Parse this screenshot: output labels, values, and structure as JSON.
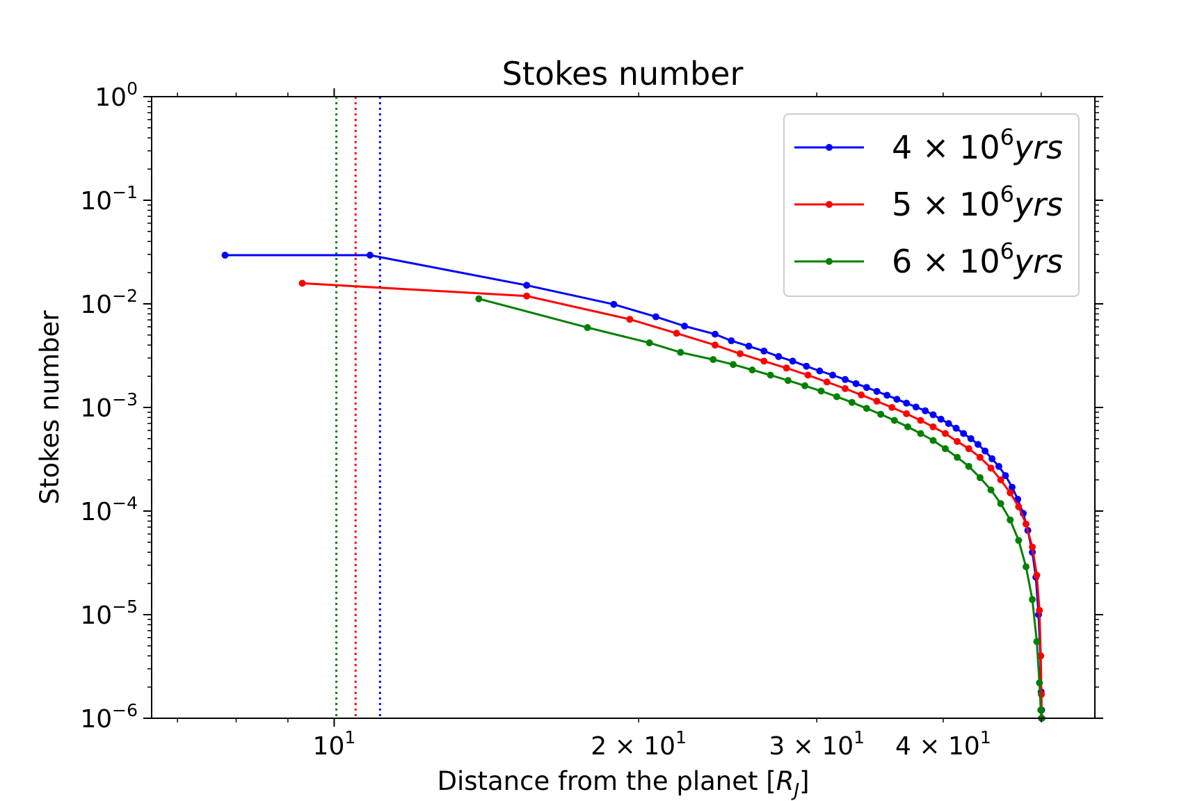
{
  "chart_data": {
    "type": "line",
    "title": "Stokes number",
    "xlabel": "Distance from the planet [R_J]",
    "ylabel": "Stokes number",
    "xscale": "log",
    "yscale": "log",
    "xlim": [
      6.6,
      56.5
    ],
    "ylim": [
      1e-06,
      1
    ],
    "x_tick_labels": [
      {
        "value": 10,
        "mantissa": "",
        "exponent": "1"
      },
      {
        "value": 20,
        "mantissa": "2",
        "exponent": "1"
      },
      {
        "value": 30,
        "mantissa": "3",
        "exponent": "1"
      },
      {
        "value": 40,
        "mantissa": "4",
        "exponent": "1"
      }
    ],
    "y_tick_labels": [
      {
        "value": 1,
        "exponent": "0"
      },
      {
        "value": 0.1,
        "exponent": "−1"
      },
      {
        "value": 0.01,
        "exponent": "−2"
      },
      {
        "value": 0.001,
        "exponent": "−3"
      },
      {
        "value": 0.0001,
        "exponent": "−4"
      },
      {
        "value": 1e-05,
        "exponent": "−5"
      },
      {
        "value": 1e-06,
        "exponent": "−6"
      }
    ],
    "legend_position": "top-right",
    "grid": false,
    "series": [
      {
        "name": "4 × 10^6 yrs",
        "mantissa": "4",
        "exponent": "6",
        "unit": "yrs",
        "color": "#0000ff",
        "vline_x": 11.1,
        "x": [
          7.8,
          10.85,
          15.5,
          18.9,
          20.8,
          22.2,
          23.8,
          24.7,
          25.7,
          26.6,
          27.5,
          28.4,
          29.3,
          30.2,
          31.1,
          32.0,
          32.8,
          33.6,
          34.4,
          35.2,
          36.0,
          36.8,
          37.6,
          38.4,
          39.1,
          39.8,
          40.5,
          41.2,
          41.9,
          42.6,
          43.3,
          44.0,
          44.7,
          45.4,
          46.1,
          46.8,
          47.4,
          48.0,
          48.5,
          49.0,
          49.4,
          49.7,
          49.9,
          50.0,
          50.05,
          50.08
        ],
        "y": [
          0.0295,
          0.0295,
          0.0151,
          0.0099,
          0.0075,
          0.0061,
          0.0051,
          0.0044,
          0.0039,
          0.0035,
          0.0031,
          0.0028,
          0.0025,
          0.00225,
          0.00205,
          0.00186,
          0.0017,
          0.00156,
          0.00143,
          0.00131,
          0.0012,
          0.0011,
          0.00101,
          0.00093,
          0.00085,
          0.00077,
          0.0007,
          0.00063,
          0.00056,
          0.0005,
          0.00044,
          0.00038,
          0.00032,
          0.00027,
          0.00022,
          0.00017,
          0.00013,
          9.5e-05,
          6.5e-05,
          4e-05,
          2.3e-05,
          1e-05,
          4e-06,
          1.8e-06,
          1.2e-06,
          1e-06
        ]
      },
      {
        "name": "5 × 10^6 yrs",
        "mantissa": "5",
        "exponent": "6",
        "unit": "yrs",
        "color": "#ff0000",
        "vline_x": 10.5,
        "x": [
          9.3,
          15.5,
          19.6,
          21.8,
          23.8,
          25.2,
          26.6,
          28.0,
          29.4,
          30.7,
          32.0,
          33.2,
          34.4,
          35.6,
          36.8,
          38.0,
          39.1,
          40.2,
          41.3,
          42.4,
          43.5,
          44.6,
          45.6,
          46.6,
          47.5,
          48.3,
          49.0,
          49.5,
          49.8,
          49.95,
          50.02,
          50.06
        ],
        "y": [
          0.0158,
          0.0119,
          0.0071,
          0.0052,
          0.004,
          0.0033,
          0.0028,
          0.0024,
          0.00205,
          0.00176,
          0.00152,
          0.00132,
          0.00115,
          0.001,
          0.00087,
          0.00075,
          0.00065,
          0.00056,
          0.00047,
          0.0004,
          0.00033,
          0.00026,
          0.0002,
          0.00015,
          0.00011,
          7.5e-05,
          4.5e-05,
          2.4e-05,
          1.1e-05,
          4e-06,
          1.7e-06,
          1e-06
        ]
      },
      {
        "name": "6 × 10^6 yrs",
        "mantissa": "6",
        "exponent": "6",
        "unit": "yrs",
        "color": "#008000",
        "vline_x": 10.05,
        "x": [
          13.9,
          17.8,
          20.5,
          22.0,
          23.7,
          24.8,
          25.9,
          27.0,
          28.1,
          29.2,
          30.3,
          31.4,
          32.5,
          33.6,
          34.7,
          35.8,
          36.9,
          38.0,
          39.1,
          40.2,
          41.3,
          42.4,
          43.5,
          44.6,
          45.6,
          46.6,
          47.5,
          48.3,
          49.0,
          49.5,
          49.8,
          49.95,
          50.02,
          50.05
        ],
        "y": [
          0.0112,
          0.0059,
          0.0042,
          0.0034,
          0.0029,
          0.0026,
          0.0023,
          0.00205,
          0.00182,
          0.00162,
          0.00144,
          0.00127,
          0.00112,
          0.00098,
          0.00086,
          0.00075,
          0.00065,
          0.00056,
          0.00048,
          0.0004,
          0.00033,
          0.00027,
          0.00021,
          0.00016,
          0.000118,
          8.2e-05,
          5.2e-05,
          2.9e-05,
          1.4e-05,
          5.5e-06,
          2.2e-06,
          1.2e-06,
          1e-06,
          1e-06
        ]
      }
    ]
  }
}
